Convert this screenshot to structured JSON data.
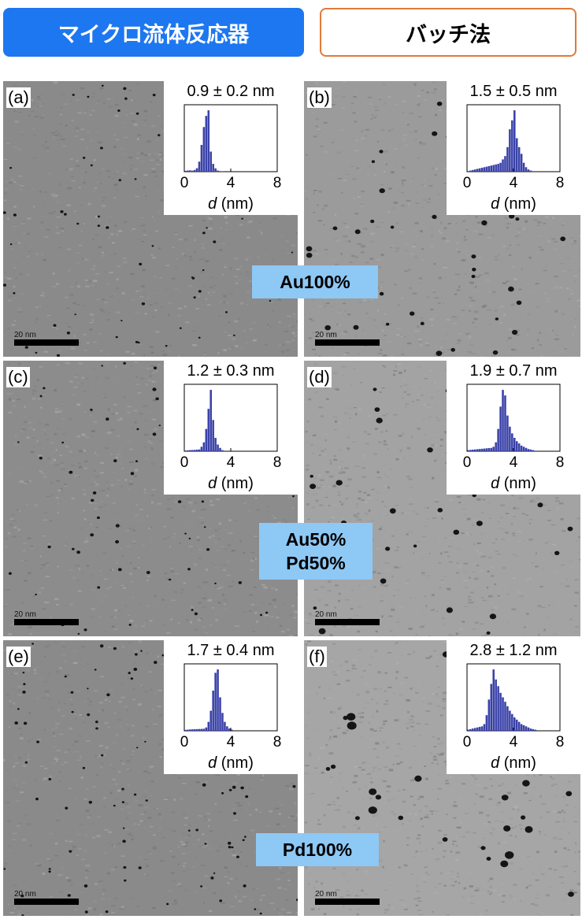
{
  "header": {
    "left_label": "マイクロ流体反応器",
    "right_label": "バッチ法"
  },
  "panels": [
    {
      "label": "(a)",
      "mean": "0.9 ± 0.2 nm",
      "scale_text": "20 nm",
      "hist": [
        0.8,
        1.0,
        1.2,
        0.9,
        1.5,
        3.1,
        9,
        24,
        40,
        50,
        55,
        18,
        7,
        3,
        1,
        0.5,
        0.2
      ]
    },
    {
      "label": "(b)",
      "mean": "1.5 ± 0.5 nm",
      "scale_text": "20 nm",
      "hist": [
        0.5,
        1.0,
        1.5,
        2.0,
        2.5,
        3.0,
        3.5,
        4.0,
        4.5,
        5.0,
        5.5,
        6.0,
        6.5,
        7.0,
        8,
        11,
        14,
        22,
        38,
        46,
        55,
        30,
        22,
        16,
        8,
        4,
        2,
        1
      ]
    },
    {
      "label": "(c)",
      "mean": "1.2 ± 0.3 nm",
      "scale_text": "20 nm",
      "hist": [
        0.6,
        0.8,
        1.0,
        1.1,
        1.2,
        1.4,
        1.6,
        4,
        8,
        20,
        38,
        55,
        28,
        12,
        6,
        3,
        1
      ]
    },
    {
      "label": "(d)",
      "mean": "1.9 ± 0.7 nm",
      "scale_text": "20 nm",
      "hist": [
        1.0,
        1.2,
        1.4,
        1.6,
        1.8,
        2.0,
        2.2,
        2.4,
        2.6,
        2.8,
        3.0,
        4,
        8,
        20,
        40,
        55,
        50,
        32,
        22,
        16,
        12,
        9,
        7,
        5,
        4,
        3,
        2,
        1.5,
        1,
        0.5
      ]
    },
    {
      "label": "(e)",
      "mean": "1.7 ± 0.4 nm",
      "scale_text": "20 nm",
      "hist": [
        0.8,
        1.0,
        1.2,
        1.3,
        1.4,
        1.5,
        1.6,
        1.7,
        1.8,
        3,
        8,
        18,
        36,
        52,
        55,
        30,
        16,
        8,
        4,
        2,
        1
      ]
    },
    {
      "label": "(f)",
      "mean": "2.8 ± 1.2 nm",
      "scale_text": "20 nm",
      "hist": [
        1.0,
        1.5,
        2.0,
        2.5,
        3.0,
        3.5,
        4.0,
        6,
        14,
        28,
        42,
        55,
        46,
        40,
        34,
        30,
        26,
        22,
        18,
        15,
        12,
        10,
        8,
        6,
        5,
        4,
        3,
        2,
        1.5,
        1
      ]
    }
  ],
  "inset_axis": {
    "ticks": [
      "0",
      "4",
      "8"
    ],
    "xlabel_var": "d",
    "xlabel_unit": " (nm)"
  },
  "compositions": {
    "row1": [
      "Au100%"
    ],
    "row2": [
      "Au50%",
      "Pd50%"
    ],
    "row3": [
      "Pd100%"
    ]
  },
  "colors": {
    "header_blue": "#1d77f0",
    "header_border_orange": "#e07a3a",
    "composition_bg": "#8ec8f5",
    "histogram_bar": "#3a42a8"
  }
}
